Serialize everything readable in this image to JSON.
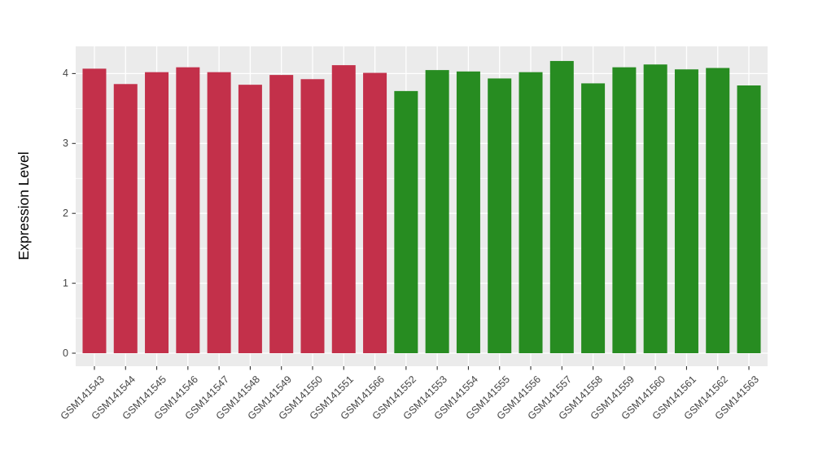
{
  "chart_data": {
    "type": "bar",
    "title": "",
    "xlabel": "",
    "ylabel": "Expression Level",
    "ylim": [
      0,
      4.39
    ],
    "y_ticks": [
      0,
      1,
      2,
      3,
      4
    ],
    "grid": "major-and-minor-white-on-gray",
    "legend": "none",
    "categories": [
      "GSM141543",
      "GSM141544",
      "GSM141545",
      "GSM141546",
      "GSM141547",
      "GSM141548",
      "GSM141549",
      "GSM141550",
      "GSM141551",
      "GSM141566",
      "GSM141552",
      "GSM141553",
      "GSM141554",
      "GSM141555",
      "GSM141556",
      "GSM141557",
      "GSM141558",
      "GSM141559",
      "GSM141560",
      "GSM141561",
      "GSM141562",
      "GSM141563"
    ],
    "values": [
      4.07,
      3.85,
      4.02,
      4.09,
      4.02,
      3.84,
      3.98,
      3.92,
      4.12,
      4.01,
      3.75,
      4.05,
      4.03,
      3.93,
      4.02,
      4.18,
      3.86,
      4.09,
      4.13,
      4.06,
      4.08,
      3.83
    ],
    "groups": [
      "red",
      "red",
      "red",
      "red",
      "red",
      "red",
      "red",
      "red",
      "red",
      "red",
      "green",
      "green",
      "green",
      "green",
      "green",
      "green",
      "green",
      "green",
      "green",
      "green",
      "green",
      "green"
    ],
    "group_colors": {
      "red": "#C3304A",
      "green": "#278C21"
    },
    "colors": {
      "panel_background": "#EBEBEB",
      "grid_line": "#FFFFFF",
      "tick_mark": "#333333",
      "tick_label": "#444444",
      "axis_title": "#000000",
      "figure_background": "#FFFFFF"
    }
  }
}
